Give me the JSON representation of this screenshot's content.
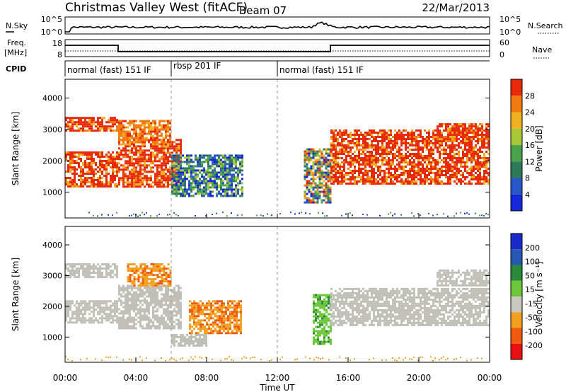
{
  "header": {
    "station": "Christmas Valley West (fitACF)",
    "beam": "Beam 07",
    "date": "22/Mar/2013"
  },
  "aux_panels": {
    "noise_left_label": "N.Sky",
    "noise_left_ticks": [
      "10^5",
      "10^0"
    ],
    "noise_right_ticks": [
      "10^5",
      "10^0"
    ],
    "noise_right_label": "N.Search",
    "freq_label_1": "Freq.",
    "freq_label_2": "[MHz]",
    "freq_ticks": [
      "18",
      "8"
    ],
    "nave_ticks": [
      "60",
      "0"
    ],
    "nave_label": "Nave",
    "cpid_label": "CPID"
  },
  "cpid_segments": [
    {
      "label": "normal (fast) 151 IF",
      "start_h": 0,
      "end_h": 6
    },
    {
      "label": "rbsp 201 IF",
      "start_h": 6,
      "end_h": 12
    },
    {
      "label": "normal (fast) 151 IF",
      "start_h": 12,
      "end_h": 24
    }
  ],
  "x_axis": {
    "label": "Time UT",
    "ticks": [
      "00:00",
      "04:00",
      "08:00",
      "12:00",
      "16:00",
      "20:00",
      "00:00"
    ]
  },
  "colors": {
    "power": [
      "#1528d8",
      "#2a56c8",
      "#2c7a5a",
      "#4aa24a",
      "#a8c838",
      "#f0b020",
      "#f07a10",
      "#e82a0a"
    ],
    "velocity": [
      "#e81010",
      "#f05a10",
      "#f2a020",
      "#c8c8c0",
      "#6cc83a",
      "#2a8a3a",
      "#2858b0",
      "#1a2ac8"
    ],
    "ground_scatter": "#c0c0b8"
  },
  "chart_data": [
    {
      "type": "heatmap",
      "name_print": "Power",
      "ylabel": "Slant Range [km]",
      "xlabel": "",
      "ylim": [
        180,
        4600
      ],
      "xlim_hours": [
        0,
        24
      ],
      "y_ticks": [
        "4000",
        "3000",
        "2000",
        "1000"
      ],
      "colorbar_label": "Power [dB]",
      "colorbar_ticks": [
        "28",
        "24",
        "20",
        "16",
        "12",
        "8",
        "4"
      ],
      "regions": [
        {
          "t0": 0.0,
          "t1": 3.0,
          "r_lo": 1200,
          "r_hi": 2300,
          "level": "high"
        },
        {
          "t0": 0.0,
          "t1": 3.0,
          "r_lo": 2950,
          "r_hi": 3400,
          "level": "high"
        },
        {
          "t0": 3.0,
          "t1": 6.5,
          "r_lo": 1200,
          "r_hi": 2700,
          "level": "high"
        },
        {
          "t0": 3.0,
          "t1": 6.0,
          "r_lo": 2500,
          "r_hi": 3300,
          "level": "mid"
        },
        {
          "t0": 6.0,
          "t1": 10.0,
          "r_lo": 900,
          "r_hi": 2200,
          "level": "low"
        },
        {
          "t0": 13.5,
          "t1": 15.0,
          "r_lo": 700,
          "r_hi": 2400,
          "level": "mixed"
        },
        {
          "t0": 15.0,
          "t1": 24.0,
          "r_lo": 1300,
          "r_hi": 3000,
          "level": "high"
        },
        {
          "t0": 21.0,
          "t1": 24.0,
          "r_lo": 2700,
          "r_hi": 3200,
          "level": "high"
        }
      ]
    },
    {
      "type": "heatmap",
      "name_print": "Velocity",
      "ylabel": "Slant Range [km]",
      "xlabel": "Time UT",
      "ylim": [
        180,
        4600
      ],
      "xlim_hours": [
        0,
        24
      ],
      "y_ticks": [
        "4000",
        "3000",
        "2000",
        "1000"
      ],
      "colorbar_label": "Velocity [m s⁻¹]",
      "colorbar_ticks": [
        "200",
        "100",
        "50",
        "15",
        "-15",
        "-50",
        "-100",
        "-200"
      ],
      "regions": [
        {
          "t0": 0.0,
          "t1": 3.0,
          "r_lo": 1500,
          "r_hi": 2200,
          "value": "ground"
        },
        {
          "t0": 0.0,
          "t1": 3.0,
          "r_lo": 2950,
          "r_hi": 3400,
          "value": "ground"
        },
        {
          "t0": 3.0,
          "t1": 6.5,
          "r_lo": 1300,
          "r_hi": 2700,
          "value": "ground"
        },
        {
          "t0": 3.5,
          "t1": 6.0,
          "r_lo": 2700,
          "r_hi": 3400,
          "value": "-50"
        },
        {
          "t0": 7.0,
          "t1": 10.0,
          "r_lo": 1100,
          "r_hi": 2200,
          "value": "-50"
        },
        {
          "t0": 6.0,
          "t1": 8.0,
          "r_lo": 700,
          "r_hi": 1100,
          "value": "ground"
        },
        {
          "t0": 14.0,
          "t1": 15.0,
          "r_lo": 800,
          "r_hi": 2400,
          "value": "50"
        },
        {
          "t0": 15.0,
          "t1": 24.0,
          "r_lo": 1400,
          "r_hi": 2600,
          "value": "ground"
        },
        {
          "t0": 21.0,
          "t1": 24.0,
          "r_lo": 2700,
          "r_hi": 3200,
          "value": "ground"
        }
      ]
    }
  ]
}
